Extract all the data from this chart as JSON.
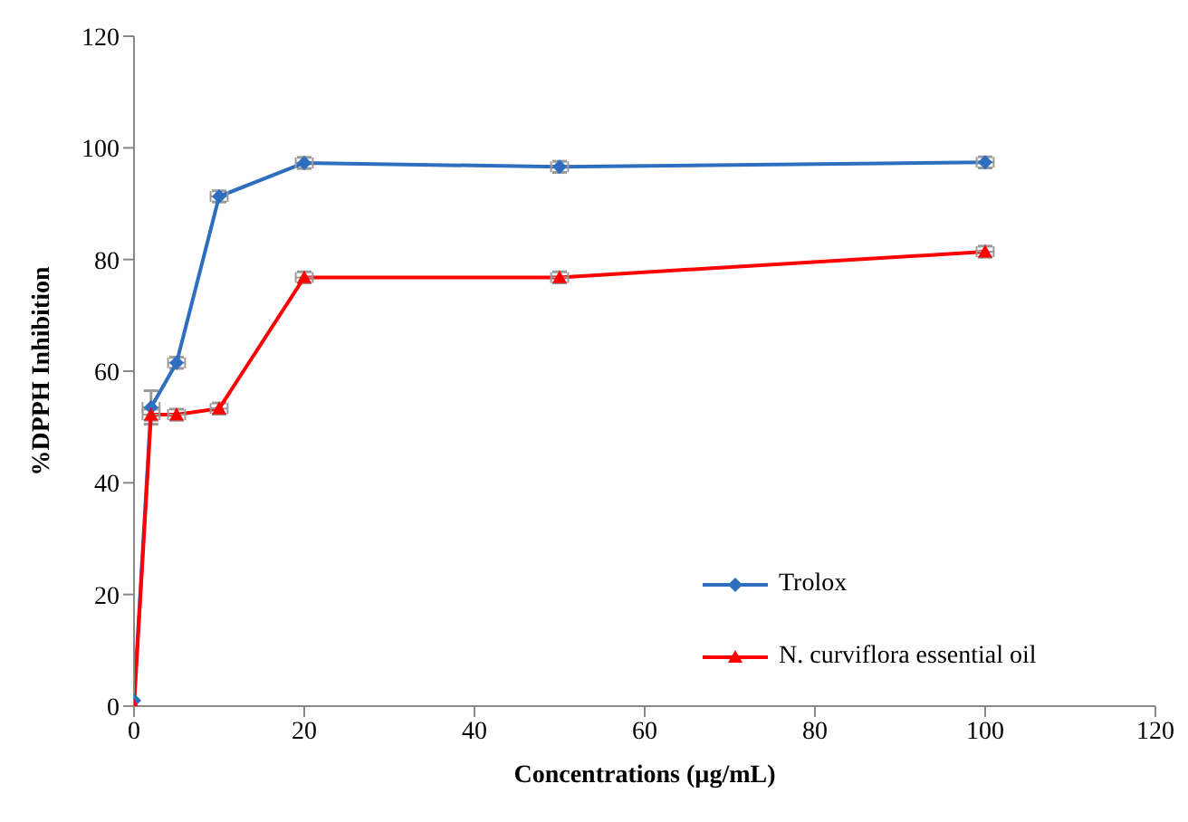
{
  "chart_data": {
    "type": "line",
    "xlabel": "Concentrations (µg/mL)",
    "ylabel": "%DPPH  Inhibition",
    "x": [
      0,
      2,
      5,
      10,
      20,
      50,
      100
    ],
    "series": [
      {
        "name": "Trolox",
        "color": "#2e6ebf",
        "marker": "diamond",
        "values": [
          1,
          53.5,
          61.5,
          91.3,
          97.3,
          96.6,
          97.4
        ],
        "errors": [
          null,
          3,
          1,
          1,
          1,
          1,
          1
        ],
        "xerrors": [
          null,
          1,
          1,
          1,
          1,
          1,
          1
        ]
      },
      {
        "name": "N. curviflora essential oil",
        "color": "#ff0000",
        "marker": "triangle",
        "values": [
          0,
          52.2,
          52.2,
          53.3,
          76.8,
          76.8,
          81.4
        ],
        "errors": [
          null,
          1,
          1,
          1,
          1,
          1,
          1
        ],
        "xerrors": [
          null,
          1,
          1,
          1,
          1,
          1,
          1
        ]
      }
    ],
    "xlim": [
      0,
      120
    ],
    "xticks": [
      0,
      20,
      40,
      60,
      80,
      100,
      120
    ],
    "ylim": [
      0,
      120
    ],
    "yticks": [
      0,
      20,
      40,
      60,
      80,
      100,
      120
    ],
    "grid": false,
    "legend": "bottom right"
  }
}
